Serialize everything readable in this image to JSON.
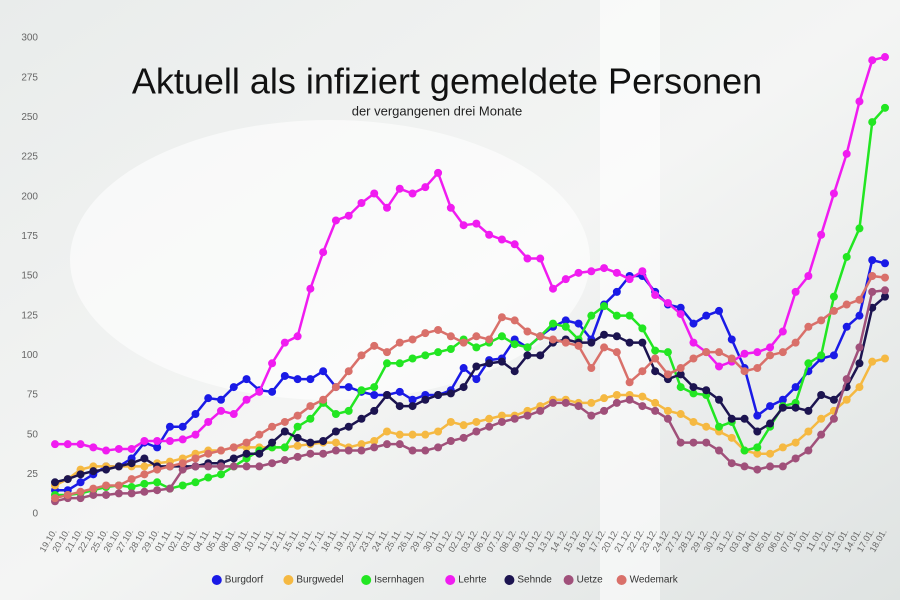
{
  "chart_data": {
    "type": "line",
    "title": "Aktuell als infiziert gemeldete Personen",
    "subtitle": "der vergangenen drei Monate",
    "categories": [
      "19.10.",
      "20.10.",
      "21.10.",
      "22.10.",
      "25.10.",
      "26.10.",
      "27.10.",
      "28.10.",
      "29.10.",
      "01.11.",
      "02.11.",
      "03.11.",
      "04.11.",
      "05.11.",
      "08.11.",
      "09.11.",
      "10.11.",
      "11.11.",
      "12.11.",
      "15.11.",
      "16.11.",
      "17.11.",
      "18.11.",
      "19.11.",
      "22.11.",
      "23.11.",
      "24.11.",
      "25.11.",
      "26.11.",
      "29.11.",
      "30.11.",
      "01.12.",
      "02.12.",
      "03.12.",
      "06.12.",
      "07.12.",
      "08.12.",
      "09.12.",
      "10.12.",
      "13.12.",
      "14.12.",
      "15.12.",
      "16.12.",
      "17.12.",
      "20.12.",
      "21.12.",
      "22.12.",
      "23.12.",
      "24.12.",
      "27.12.",
      "28.12.",
      "29.12.",
      "30.12.",
      "31.12.",
      "03.01.",
      "04.01.",
      "05.01.",
      "06.01.",
      "07.01.",
      "10.01.",
      "11.01.",
      "12.01.",
      "13.01.",
      "14.01.",
      "17.01.",
      "18.01."
    ],
    "series": [
      {
        "name": "Burgdorf",
        "color": "#1a1ae6",
        "values": [
          15,
          15,
          20,
          25,
          30,
          30,
          35,
          45,
          42,
          55,
          55,
          63,
          73,
          72,
          80,
          85,
          78,
          77,
          87,
          85,
          85,
          90,
          80,
          80,
          77,
          75,
          75,
          77,
          72,
          75,
          75,
          78,
          92,
          85,
          97,
          98,
          110,
          105,
          112,
          118,
          122,
          120,
          110,
          132,
          140,
          150,
          150,
          140,
          132,
          130,
          120,
          125,
          128,
          110,
          92,
          62,
          68,
          72,
          80,
          90,
          98,
          100,
          118,
          125,
          160,
          158
        ]
      },
      {
        "name": "Burgwedel",
        "color": "#f5b942",
        "values": [
          18,
          22,
          28,
          30,
          30,
          30,
          30,
          30,
          32,
          33,
          35,
          38,
          40,
          40,
          42,
          42,
          42,
          42,
          42,
          43,
          44,
          45,
          45,
          42,
          44,
          46,
          52,
          50,
          50,
          50,
          52,
          58,
          56,
          58,
          60,
          62,
          62,
          65,
          68,
          72,
          72,
          70,
          70,
          73,
          75,
          75,
          74,
          70,
          65,
          63,
          58,
          55,
          52,
          48,
          40,
          38,
          38,
          42,
          45,
          52,
          60,
          65,
          72,
          80,
          96,
          98
        ]
      },
      {
        "name": "Isernhagen",
        "color": "#22e622",
        "values": [
          12,
          12,
          13,
          15,
          17,
          18,
          17,
          19,
          20,
          16,
          18,
          20,
          23,
          25,
          30,
          35,
          40,
          42,
          42,
          55,
          60,
          70,
          63,
          65,
          78,
          80,
          95,
          95,
          98,
          100,
          102,
          104,
          110,
          105,
          108,
          112,
          107,
          105,
          112,
          120,
          118,
          110,
          125,
          131,
          125,
          125,
          117,
          103,
          102,
          80,
          76,
          75,
          55,
          58,
          40,
          42,
          55,
          68,
          70,
          95,
          100,
          137,
          162,
          180,
          247,
          256
        ]
      },
      {
        "name": "Lehrte",
        "color": "#f01cf0",
        "values": [
          44,
          44,
          44,
          42,
          40,
          41,
          41,
          46,
          46,
          46,
          47,
          50,
          58,
          65,
          63,
          72,
          77,
          95,
          108,
          112,
          142,
          165,
          185,
          188,
          196,
          202,
          193,
          205,
          202,
          206,
          215,
          193,
          182,
          183,
          176,
          173,
          170,
          161,
          161,
          142,
          148,
          152,
          153,
          155,
          152,
          148,
          153,
          138,
          133,
          126,
          108,
          102,
          93,
          96,
          101,
          102,
          105,
          115,
          140,
          150,
          176,
          202,
          227,
          260,
          286,
          288
        ]
      },
      {
        "name": "Sehnde",
        "color": "#1c1450",
        "values": [
          20,
          22,
          25,
          27,
          28,
          30,
          32,
          35,
          30,
          30,
          30,
          30,
          32,
          32,
          35,
          38,
          38,
          45,
          52,
          48,
          45,
          46,
          52,
          55,
          60,
          65,
          75,
          68,
          68,
          72,
          75,
          76,
          80,
          93,
          95,
          96,
          90,
          100,
          100,
          108,
          110,
          108,
          108,
          113,
          112,
          108,
          108,
          90,
          85,
          88,
          80,
          78,
          72,
          60,
          60,
          52,
          57,
          67,
          67,
          65,
          75,
          72,
          80,
          95,
          130,
          137
        ]
      },
      {
        "name": "Uetze",
        "color": "#a0507a",
        "values": [
          8,
          10,
          10,
          12,
          12,
          13,
          13,
          14,
          15,
          16,
          28,
          30,
          30,
          30,
          30,
          30,
          30,
          32,
          34,
          36,
          38,
          38,
          40,
          40,
          40,
          42,
          44,
          44,
          40,
          40,
          42,
          46,
          48,
          52,
          55,
          58,
          60,
          62,
          65,
          70,
          70,
          68,
          62,
          65,
          70,
          72,
          68,
          65,
          60,
          45,
          45,
          45,
          40,
          32,
          30,
          28,
          30,
          30,
          35,
          40,
          50,
          60,
          85,
          105,
          140,
          141
        ]
      },
      {
        "name": "Wedemark",
        "color": "#d9706a",
        "values": [
          10,
          12,
          14,
          16,
          18,
          18,
          22,
          25,
          28,
          30,
          32,
          35,
          38,
          40,
          42,
          45,
          50,
          55,
          58,
          62,
          68,
          72,
          80,
          90,
          100,
          106,
          102,
          108,
          110,
          114,
          116,
          112,
          108,
          112,
          110,
          124,
          122,
          115,
          112,
          110,
          108,
          106,
          92,
          105,
          102,
          83,
          90,
          98,
          88,
          92,
          98,
          102,
          102,
          98,
          90,
          92,
          100,
          102,
          108,
          118,
          122,
          128,
          132,
          135,
          150,
          149
        ]
      }
    ],
    "ylim": [
      0,
      300
    ],
    "yticks": [
      0,
      25,
      50,
      75,
      100,
      125,
      150,
      175,
      200,
      225,
      250,
      275,
      300
    ],
    "grid": false,
    "legend": "bottom"
  }
}
